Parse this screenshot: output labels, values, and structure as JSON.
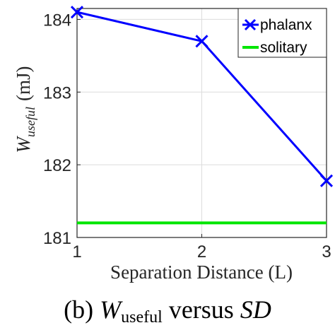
{
  "chart_data": {
    "type": "line",
    "x": [
      1,
      2,
      3
    ],
    "series": [
      {
        "name": "phalanx",
        "values": [
          184.1,
          183.7,
          181.78
        ],
        "color": "#0000ff",
        "marker": "x"
      },
      {
        "name": "solitary",
        "values": [
          181.2,
          181.2,
          181.2
        ],
        "color": "#00e600",
        "marker": "none"
      }
    ],
    "xlim": [
      1,
      3
    ],
    "ylim": [
      181,
      184.15
    ],
    "xticks": [
      "1",
      "2",
      "3"
    ],
    "yticks": [
      "181",
      "182",
      "183",
      "184"
    ],
    "xlabel": "Separation Distance (L)",
    "ylabel": {
      "main": "W",
      "sub": "useful",
      "unit": "(mJ)"
    },
    "grid": true,
    "legend_position": "top-right"
  },
  "caption": {
    "prefix": "(b) ",
    "w": "W",
    "sub": "useful",
    "middle": " versus ",
    "sd": "SD"
  }
}
